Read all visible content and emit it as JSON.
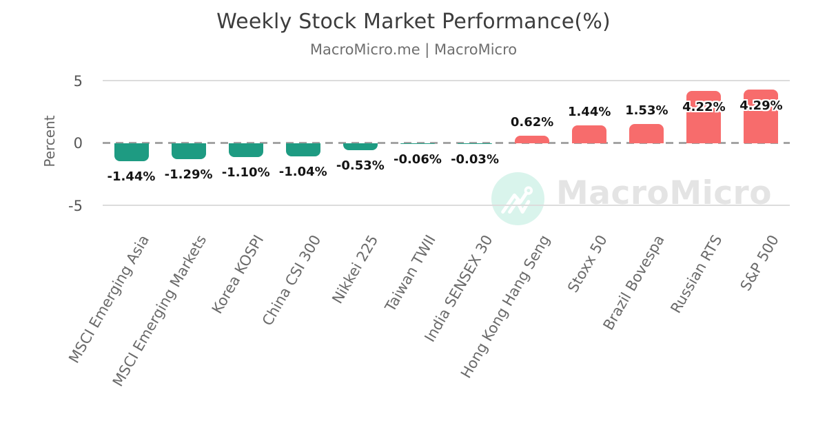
{
  "header": {
    "title": "Weekly Stock Market Performance(%)",
    "subtitle": "MacroMicro.me | MacroMicro"
  },
  "watermark": {
    "brand": "MacroMicro",
    "icon": "macromicro-line-chart-logo-icon",
    "circle_color": "#d9f4ec",
    "icon_stroke_color": "#ffffff",
    "text_color": "#e4e4e4"
  },
  "chart_data": {
    "type": "bar",
    "title": "Weekly Stock Market Performance(%)",
    "xlabel": "",
    "ylabel": "Percent",
    "ylim": [
      -6,
      6
    ],
    "yticks": [
      5,
      0,
      -5
    ],
    "grid": true,
    "zero_line_style": "dashed",
    "legend": "none",
    "categories": [
      "MSCI Emerging Asia",
      "MSCI Emerging Markets",
      "Korea KOSPI",
      "China CSI 300",
      "Nikkei 225",
      "Taiwan TWII",
      "India SENSEX 30",
      "Hong Kong Hang Seng",
      "Stoxx 50",
      "Brazil Bovespa",
      "Russian RTS",
      "S&P 500"
    ],
    "values": [
      -1.44,
      -1.29,
      -1.1,
      -1.04,
      -0.53,
      -0.06,
      -0.03,
      0.62,
      1.44,
      1.53,
      4.22,
      4.29
    ],
    "value_labels": [
      "-1.44%",
      "-1.29%",
      "-1.10%",
      "-1.04%",
      "-0.53%",
      "-0.06%",
      "-0.03%",
      "0.62%",
      "1.44%",
      "1.53%",
      "4.22%",
      "4.29%"
    ],
    "colors": {
      "positive": "#f76c6c",
      "negative": "#1e9b82",
      "grid": "#dcdcdc",
      "zero_line": "#a3a3a3",
      "tick_text": "#565656",
      "category_text": "#6a6a6a",
      "value_text": "#141414"
    }
  }
}
